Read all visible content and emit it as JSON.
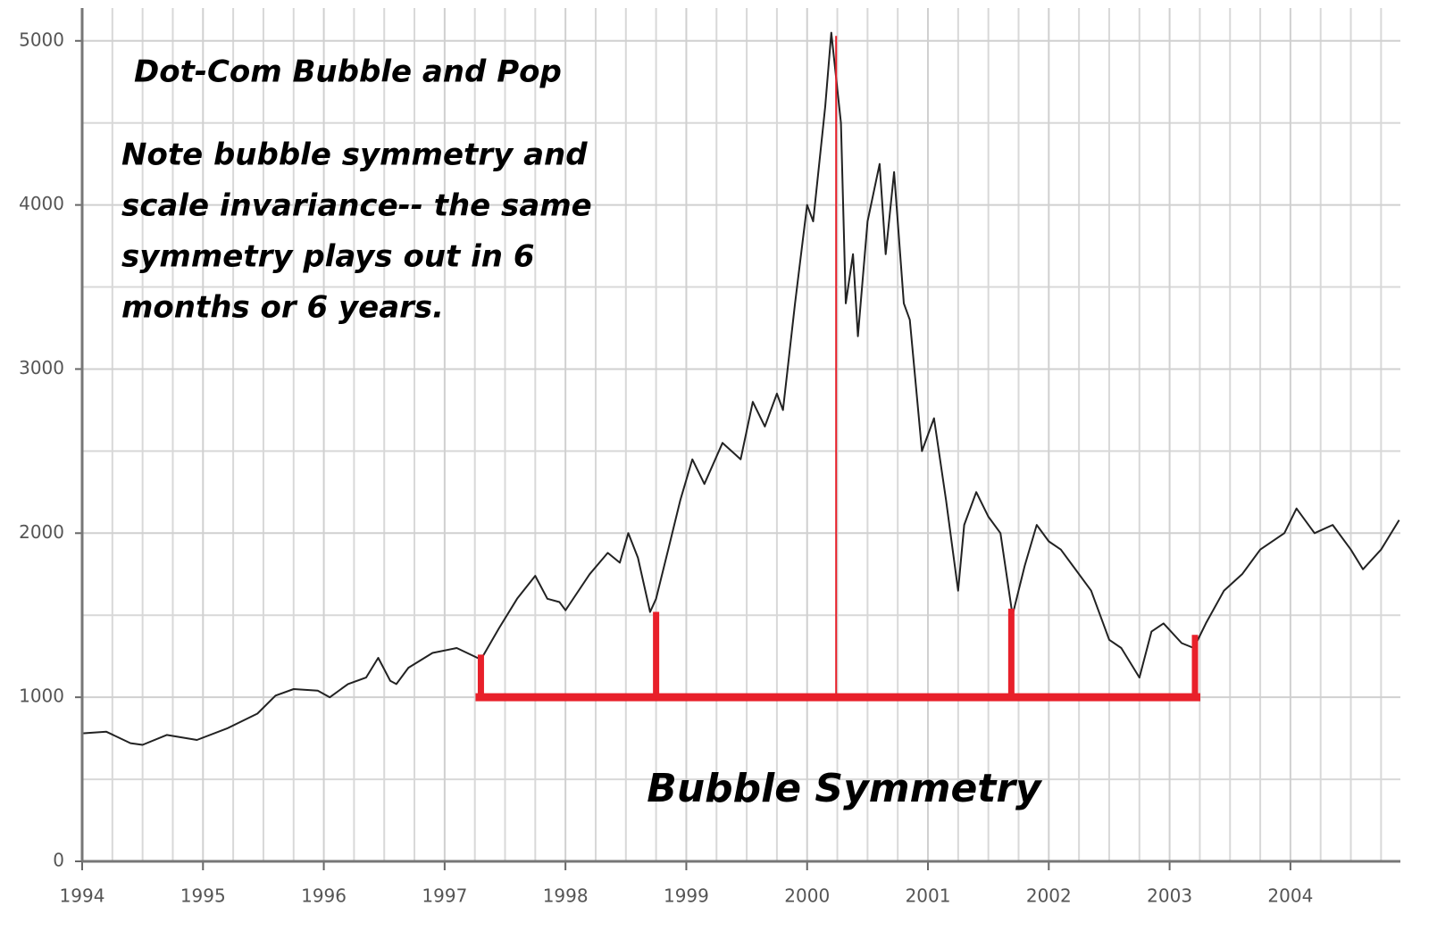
{
  "chart_data": {
    "type": "line",
    "title": "Dot-Com Bubble and Pop",
    "note_lines": [
      "Note bubble symmetry and",
      "scale invariance-- the same",
      "symmetry plays out in 6",
      "months or 6 years."
    ],
    "annotation": "Bubble Symmetry",
    "x": [
      1994.0,
      1994.2,
      1994.4,
      1994.5,
      1994.7,
      1994.95,
      1995.2,
      1995.45,
      1995.6,
      1995.75,
      1995.95,
      1996.05,
      1996.2,
      1996.35,
      1996.45,
      1996.55,
      1996.6,
      1996.7,
      1996.9,
      1997.1,
      1997.3,
      1997.45,
      1997.6,
      1997.75,
      1997.85,
      1997.95,
      1998.0,
      1998.2,
      1998.35,
      1998.45,
      1998.52,
      1998.6,
      1998.7,
      1998.75,
      1998.85,
      1998.95,
      1999.05,
      1999.15,
      1999.3,
      1999.45,
      1999.55,
      1999.65,
      1999.75,
      1999.8,
      1999.9,
      2000.0,
      2000.05,
      2000.15,
      2000.2,
      2000.28,
      2000.32,
      2000.38,
      2000.42,
      2000.5,
      2000.6,
      2000.65,
      2000.72,
      2000.8,
      2000.85,
      2000.95,
      2001.05,
      2001.15,
      2001.25,
      2001.3,
      2001.4,
      2001.5,
      2001.6,
      2001.7,
      2001.8,
      2001.9,
      2002.0,
      2002.1,
      2002.2,
      2002.35,
      2002.5,
      2002.6,
      2002.75,
      2002.85,
      2002.95,
      2003.1,
      2003.2,
      2003.3,
      2003.45,
      2003.6,
      2003.75,
      2003.95,
      2004.05,
      2004.2,
      2004.35,
      2004.5,
      2004.6,
      2004.75,
      2004.9
    ],
    "series": [
      {
        "color": "#222222",
        "values": [
          780,
          790,
          720,
          710,
          770,
          740,
          810,
          900,
          1010,
          1050,
          1040,
          1000,
          1080,
          1120,
          1240,
          1100,
          1080,
          1180,
          1270,
          1300,
          1230,
          1420,
          1600,
          1740,
          1600,
          1580,
          1530,
          1750,
          1880,
          1820,
          2000,
          1850,
          1520,
          1600,
          1900,
          2200,
          2450,
          2300,
          2550,
          2450,
          2800,
          2650,
          2850,
          2750,
          3400,
          4000,
          3900,
          4600,
          5050,
          4500,
          3400,
          3700,
          3200,
          3900,
          4250,
          3700,
          4200,
          3400,
          3300,
          2500,
          2700,
          2200,
          1650,
          2050,
          2250,
          2100,
          2000,
          1500,
          1800,
          2050,
          1950,
          1900,
          1800,
          1650,
          1350,
          1300,
          1120,
          1400,
          1450,
          1330,
          1300,
          1450,
          1650,
          1750,
          1900,
          2000,
          2150,
          2000,
          2050,
          1900,
          1780,
          1900,
          2080
        ]
      }
    ],
    "bracket": {
      "color": "#e8202a",
      "base": 1000,
      "x": [
        1997.3,
        1998.75,
        2000.24,
        2001.69,
        2003.21
      ],
      "tops": [
        1260,
        1520,
        5030,
        1540,
        1380
      ]
    },
    "xlim": [
      1994,
      2004.91
    ],
    "xticks": [
      1994,
      1995,
      1996,
      1997,
      1998,
      1999,
      2000,
      2001,
      2002,
      2003,
      2004
    ],
    "xminorticks": [
      1994.25,
      1994.5,
      1994.75,
      1995.25,
      1995.5,
      1995.75,
      1996.25,
      1996.5,
      1996.75,
      1997.25,
      1997.5,
      1997.75,
      1998.25,
      1998.5,
      1998.75,
      1999.25,
      1999.5,
      1999.75,
      2000.25,
      2000.5,
      2000.75,
      2001.25,
      2001.5,
      2001.75,
      2002.25,
      2002.5,
      2002.75,
      2003.25,
      2003.5,
      2003.75,
      2004.25,
      2004.5,
      2004.75
    ],
    "ylim": [
      0,
      5200
    ],
    "yticks": [
      0,
      1000,
      2000,
      3000,
      4000,
      5000
    ],
    "yminorticks": [
      500,
      1500,
      2500,
      3500,
      4500
    ],
    "grid": true
  }
}
